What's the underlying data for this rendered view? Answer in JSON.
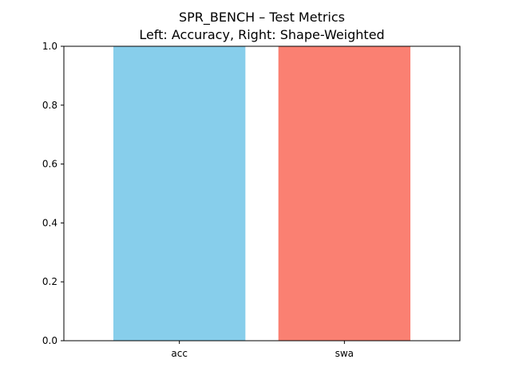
{
  "chart_data": {
    "type": "bar",
    "title": "SPR_BENCH – Test Metrics",
    "subtitle": "Left: Accuracy, Right: Shape-Weighted",
    "categories": [
      "acc",
      "swa"
    ],
    "values": [
      1.0,
      1.0
    ],
    "colors": [
      "#87ceeb",
      "#fa8072"
    ],
    "xlabel": "",
    "ylabel": "",
    "ylim": [
      0,
      1
    ],
    "yticks": [
      0.0,
      0.2,
      0.4,
      0.6,
      0.8,
      1.0
    ],
    "grid": false,
    "legend": "none"
  }
}
